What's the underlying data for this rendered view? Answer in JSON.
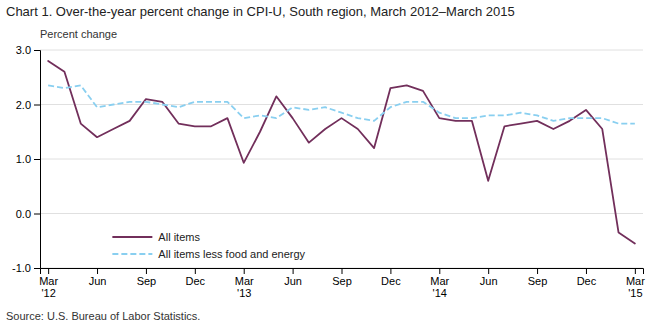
{
  "chart_data": {
    "type": "line",
    "title": "Chart 1. Over-the-year percent change in CPI-U, South region, March 2012–March 2015",
    "ylabel": "Percent change",
    "annotations": [
      "Source: U.S. Bureau of Labor Statistics."
    ],
    "categories": [
      "Mar\n'12",
      null,
      null,
      "Jun",
      null,
      null,
      "Sep",
      null,
      null,
      "Dec",
      null,
      null,
      "Mar\n'13",
      null,
      null,
      "Jun",
      null,
      null,
      "Sep",
      null,
      null,
      "Dec",
      null,
      null,
      "Mar\n'14",
      null,
      null,
      "Jun",
      null,
      null,
      "Sep",
      null,
      null,
      "Dec",
      null,
      null,
      "Mar\n'15"
    ],
    "series": [
      {
        "name": "All items",
        "color": "#722F5B",
        "line_style": "solid",
        "values": [
          2.8,
          2.6,
          1.65,
          1.4,
          1.55,
          1.7,
          2.1,
          2.05,
          1.65,
          1.6,
          1.6,
          1.75,
          0.93,
          1.5,
          2.15,
          1.75,
          1.3,
          1.55,
          1.75,
          1.55,
          1.2,
          2.3,
          2.35,
          2.25,
          1.75,
          1.7,
          1.7,
          0.6,
          1.6,
          1.65,
          1.7,
          1.55,
          1.7,
          1.9,
          1.55,
          -0.35,
          -0.55
        ]
      },
      {
        "name": "All items less food and energy",
        "color": "#89CFF0",
        "line_style": "dashed",
        "values": [
          2.35,
          2.3,
          2.35,
          1.95,
          2.0,
          2.05,
          2.05,
          2.0,
          1.95,
          2.05,
          2.05,
          2.05,
          1.75,
          1.8,
          1.75,
          1.95,
          1.9,
          1.95,
          1.85,
          1.75,
          1.7,
          1.95,
          2.05,
          2.05,
          1.85,
          1.75,
          1.75,
          1.8,
          1.8,
          1.85,
          1.8,
          1.7,
          1.75,
          1.75,
          1.75,
          1.65,
          1.65
        ]
      }
    ],
    "ylim": [
      -1.0,
      3.0
    ],
    "yticks": [
      {
        "value": -1.0,
        "label": "-1.0"
      },
      {
        "value": 0.0,
        "label": "0.0"
      },
      {
        "value": 1.0,
        "label": "1.0"
      },
      {
        "value": 2.0,
        "label": "2.0"
      },
      {
        "value": 3.0,
        "label": "3.0"
      }
    ],
    "grid": true,
    "legend": "lower left"
  }
}
